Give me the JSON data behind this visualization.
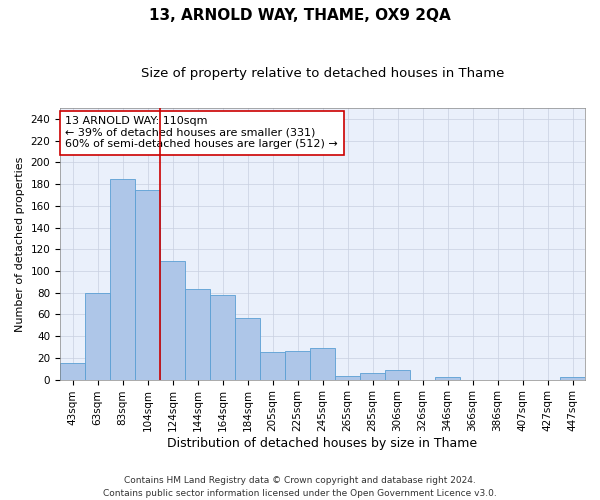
{
  "title": "13, ARNOLD WAY, THAME, OX9 2QA",
  "subtitle": "Size of property relative to detached houses in Thame",
  "xlabel": "Distribution of detached houses by size in Thame",
  "ylabel": "Number of detached properties",
  "categories": [
    "43sqm",
    "63sqm",
    "83sqm",
    "104sqm",
    "124sqm",
    "144sqm",
    "164sqm",
    "184sqm",
    "205sqm",
    "225sqm",
    "245sqm",
    "265sqm",
    "285sqm",
    "306sqm",
    "326sqm",
    "346sqm",
    "366sqm",
    "386sqm",
    "407sqm",
    "427sqm",
    "447sqm"
  ],
  "values": [
    15,
    80,
    185,
    175,
    109,
    83,
    78,
    57,
    25,
    26,
    29,
    3,
    6,
    9,
    0,
    2,
    0,
    0,
    0,
    0,
    2
  ],
  "bar_color": "#aec6e8",
  "bar_edge_color": "#5a9fd4",
  "vline_x": 3.5,
  "vline_color": "#cc0000",
  "annotation_lines": [
    "13 ARNOLD WAY: 110sqm",
    "← 39% of detached houses are smaller (331)",
    "60% of semi-detached houses are larger (512) →"
  ],
  "ylim": [
    0,
    250
  ],
  "yticks": [
    0,
    20,
    40,
    60,
    80,
    100,
    120,
    140,
    160,
    180,
    200,
    220,
    240
  ],
  "bg_color": "#eaf0fb",
  "grid_color": "#c8d0e0",
  "footer": "Contains HM Land Registry data © Crown copyright and database right 2024.\nContains public sector information licensed under the Open Government Licence v3.0.",
  "title_fontsize": 11,
  "subtitle_fontsize": 9.5,
  "xlabel_fontsize": 9,
  "ylabel_fontsize": 8,
  "tick_fontsize": 7.5,
  "annotation_fontsize": 8,
  "footer_fontsize": 6.5
}
